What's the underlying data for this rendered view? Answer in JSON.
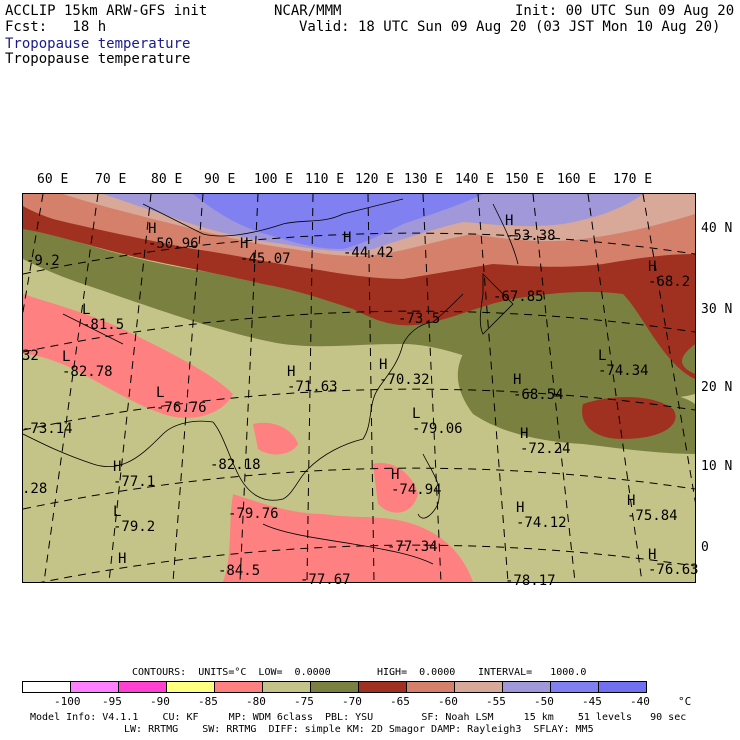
{
  "header": {
    "left_line1": "ACCLIP 15km ARW-GFS init",
    "left_line2": "Fcst:   18 h",
    "center": "NCAR/MMM",
    "init": "Init: 00 UTC Sun 09 Aug 20",
    "valid": "Valid: 18 UTC Sun 09 Aug 20 (03 JST Mon 10 Aug 20)",
    "field1": "Tropopause temperature",
    "field2": "Tropopause temperature"
  },
  "longitudes": [
    "60 E",
    "70 E",
    "80 E",
    "90 E",
    "100 E",
    "110 E",
    "120 E",
    "130 E",
    "140 E",
    "150 E",
    "160 E",
    "170 E"
  ],
  "latitudes": [
    "40 N",
    "30 N",
    "20 N",
    "10 N",
    "0"
  ],
  "extrema": [
    {
      "type": "H",
      "value": "-50.96"
    },
    {
      "type": "H",
      "value": "-45.07"
    },
    {
      "type": "H",
      "value": "-44.42"
    },
    {
      "type": "H",
      "value": "-53.38"
    },
    {
      "type": "H",
      "value": "-68.2"
    },
    {
      "type": "",
      "value": "-9.2"
    },
    {
      "type": "L",
      "value": "-81.5"
    },
    {
      "type": "L",
      "value": "-82.78"
    },
    {
      "type": "",
      "value": "32"
    },
    {
      "type": "L",
      "value": "-76.76"
    },
    {
      "type": "H",
      "value": "-71.63"
    },
    {
      "type": "H",
      "value": "-70.32"
    },
    {
      "type": "",
      "value": "-73.5"
    },
    {
      "type": "",
      "value": "-67.85"
    },
    {
      "type": "H",
      "value": "-68.54"
    },
    {
      "type": "L",
      "value": "-74.34"
    },
    {
      "type": "L",
      "value": "-79.06"
    },
    {
      "type": "H",
      "value": "-72.24"
    },
    {
      "type": "",
      "value": "-73.14"
    },
    {
      "type": "",
      "value": "-82.18"
    },
    {
      "type": "H",
      "value": "-77.1"
    },
    {
      "type": "",
      "value": ".28"
    },
    {
      "type": "H",
      "value": "-74.94"
    },
    {
      "type": "L",
      "value": "-79.2"
    },
    {
      "type": "",
      "value": "-79.76"
    },
    {
      "type": "H",
      "value": "-74.12"
    },
    {
      "type": "H",
      "value": "-75.84"
    },
    {
      "type": "",
      "value": "-77.34"
    },
    {
      "type": "H",
      "value": "-76.63"
    },
    {
      "type": "H",
      "value": ""
    },
    {
      "type": "",
      "value": "-84.5"
    },
    {
      "type": "",
      "value": "-77.67"
    },
    {
      "type": "",
      "value": "-78.17"
    }
  ],
  "contours": {
    "text_units": "CONTOURS:  UNITS=°C  LOW=  0.0000",
    "text_high": "HIGH=  0.0000",
    "text_interval": "INTERVAL=   1000.0"
  },
  "colorbar": {
    "labels": [
      "-100",
      "-95",
      "-90",
      "-85",
      "-80",
      "-75",
      "-70",
      "-65",
      "-60",
      "-55",
      "-50",
      "-45",
      "-40",
      "°C"
    ],
    "colors": [
      "#ffffff",
      "#ff80ff",
      "#ff40d0",
      "#ffff80",
      "#ff8080",
      "#c4c488",
      "#7a8040",
      "#a03020",
      "#d4806a",
      "#d8a898",
      "#a098d8",
      "#8080f0",
      "#7070f0"
    ]
  },
  "footer": {
    "line1": "Model Info: V4.1.1    CU: KF     MP: WDM 6class  PBL: YSU        SF: Noah LSM     15 km    51 levels   90 sec",
    "line2": "LW: RRTMG    SW: RRTMG  DIFF: simple KM: 2D Smagor DAMP: Rayleigh3  SFLAY: MM5"
  },
  "map_colors": {
    "land_base": "#c4c488",
    "olive": "#7a8040",
    "dark_red": "#a03020",
    "salmon": "#d4806a",
    "pink_beige": "#d8a898",
    "lavender": "#a098d8",
    "blue": "#8080f0",
    "pink": "#ff8080"
  }
}
